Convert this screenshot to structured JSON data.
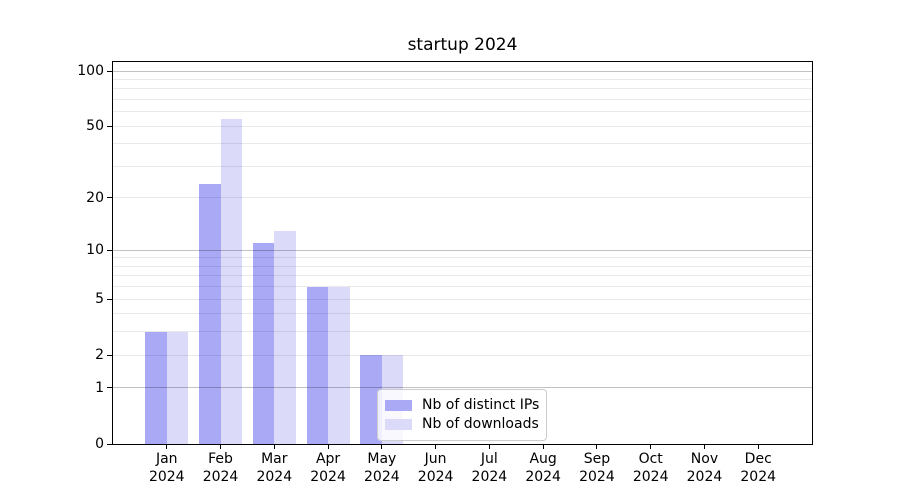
{
  "title": "startup 2024",
  "chart_data": {
    "type": "bar",
    "title": "startup 2024",
    "categories": [
      "Jan 2024",
      "Feb 2024",
      "Mar 2024",
      "Apr 2024",
      "May 2024",
      "Jun 2024",
      "Jul 2024",
      "Aug 2024",
      "Sep 2024",
      "Oct 2024",
      "Nov 2024",
      "Dec 2024"
    ],
    "series": [
      {
        "name": "Nb of distinct IPs",
        "color": "#a9a9f6",
        "values": [
          3,
          24,
          11,
          6,
          2,
          0,
          0,
          0,
          0,
          0,
          0,
          0
        ]
      },
      {
        "name": "Nb of downloads",
        "color": "#dbdbf9",
        "values": [
          3,
          55,
          13,
          6,
          2,
          0,
          0,
          0,
          0,
          0,
          0,
          0
        ]
      }
    ],
    "xlabel": "",
    "ylabel": "",
    "yscale": "log1p",
    "ylim": [
      0,
      112
    ],
    "yticks_labeled": [
      0,
      1,
      2,
      5,
      10,
      20,
      50,
      100
    ],
    "grid_major_at": [
      1,
      10,
      100
    ],
    "grid_minor_at": [
      2,
      3,
      4,
      5,
      6,
      7,
      8,
      9,
      20,
      30,
      40,
      50,
      60,
      70,
      80,
      90
    ],
    "grid": true,
    "legend_position": "lower center",
    "bar_group_width_fraction": 0.8
  }
}
